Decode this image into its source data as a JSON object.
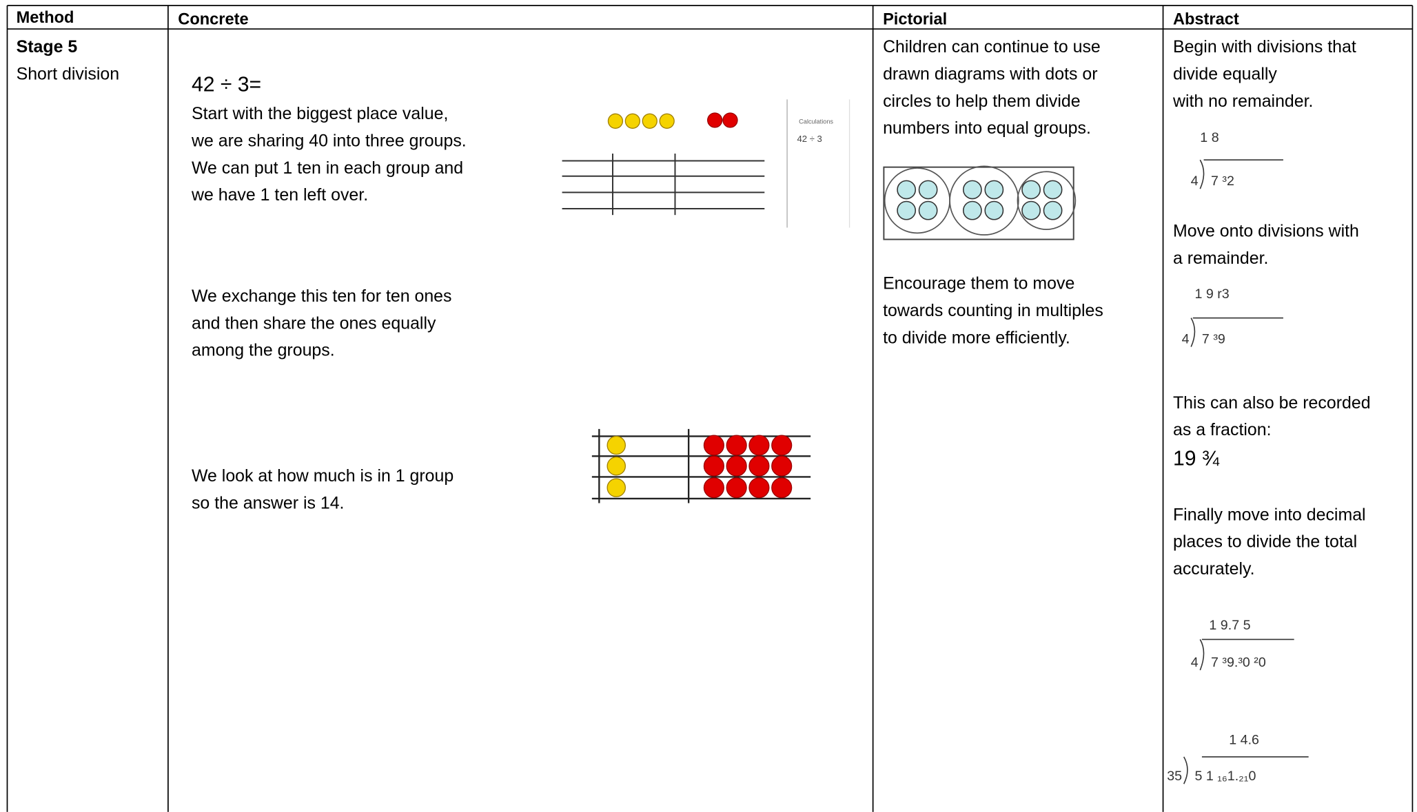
{
  "table": {
    "header": [
      "Method",
      "Concrete",
      "Pictorial",
      "Abstract"
    ],
    "method": {
      "stage": "Stage 5",
      "name": "Short division"
    },
    "concrete": {
      "equation": "42 ÷ 3=",
      "paragraphs": [
        [
          "Start with the biggest place value,",
          "we are sharing 40 into three groups.",
          "We can put 1 ten in each group and",
          "we have 1 ten left over."
        ],
        [
          "We exchange this ten for ten ones",
          "and then share the ones equally",
          "among the groups."
        ],
        [
          "We look at how much is in 1 group",
          "so the answer is 14."
        ]
      ],
      "image_label": {
        "title": "Calculations",
        "sum": "42 ÷ 3"
      }
    },
    "pictorial": {
      "paragraphs": [
        [
          "Children can continue to use",
          "drawn diagrams with dots or",
          "circles to help them divide",
          "numbers into equal groups."
        ],
        [
          "Encourage them to move",
          "towards counting in multiples",
          "to divide more efficiently."
        ]
      ]
    },
    "abstract": {
      "intro": [
        "Begin with divisions that",
        "divide equally",
        "with no remainder."
      ],
      "remainder": [
        "Move onto divisions with",
        "a remainder."
      ],
      "fraction_text": [
        "This can also be recorded",
        "as a fraction:"
      ],
      "fraction": "19 ¾",
      "decimal": [
        "Finally move into decimal",
        "places to divide the total",
        "accurately."
      ],
      "workings": [
        {
          "quotient": "1 8",
          "divisor": "4",
          "dividend": "7 ³2"
        },
        {
          "quotient": "1 9 r3",
          "divisor": "4",
          "dividend": "7 ³9"
        },
        {
          "quotient": "1 9.7 5",
          "divisor": "4",
          "dividend": "7 ³9.³0 ²0"
        },
        {
          "quotient": "1 4.6",
          "divisor": "35",
          "dividend": "5 1 ₁₆1.₂₁0"
        }
      ]
    }
  }
}
